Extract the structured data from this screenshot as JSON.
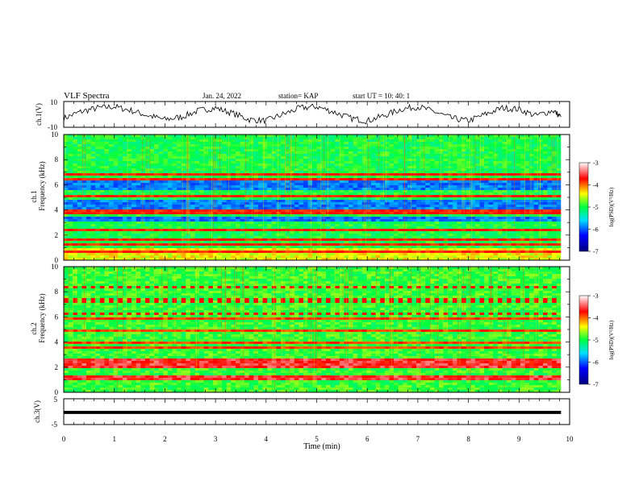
{
  "header": {
    "title": "VLF Spectra",
    "date": "Jan. 24, 2022",
    "station": "station= KAP",
    "start_ut": "start  UT  =   10: 40: 1"
  },
  "colorbar": {
    "ticks": [
      "-3",
      "-4",
      "-5",
      "-6",
      "-7"
    ],
    "label": "log(PSD)(V²/Hz)"
  },
  "chart_data": [
    {
      "id": "ch1-waveform",
      "type": "line",
      "ylabel": "ch.1(V)",
      "ylim": [
        -10,
        10
      ],
      "yticks": [
        "10",
        "-10"
      ],
      "xlim": [
        0,
        10
      ],
      "description_of_signal": "noisy triangular oscillation",
      "x": [
        0.0,
        0.33,
        0.67,
        1.0,
        1.33,
        1.67,
        2.0,
        2.33,
        2.67,
        3.0,
        3.33,
        3.67,
        4.0,
        4.33,
        4.67,
        5.0,
        5.33,
        5.67,
        6.0,
        6.33,
        6.67,
        7.0,
        7.33,
        7.67,
        8.0,
        8.33,
        8.67,
        9.0,
        9.33,
        9.67,
        9.83
      ],
      "y": [
        -3,
        2,
        5,
        6,
        3,
        -1,
        -4,
        -2,
        3,
        5,
        1,
        -4,
        -5,
        0,
        5,
        6,
        2,
        -3,
        -5,
        -1,
        4,
        6,
        2,
        -3,
        -5,
        0,
        5,
        4,
        -1,
        3,
        -2
      ]
    },
    {
      "id": "ch1-spectrogram",
      "type": "heatmap",
      "ylabel": "ch.1\nFrequency (kHz)",
      "ylim": [
        0,
        10
      ],
      "yticks": [
        "0",
        "2",
        "4",
        "6",
        "8",
        "10"
      ],
      "xlim": [
        0,
        9.83
      ],
      "zlim": [
        -7,
        -3
      ],
      "dark_bands_khz": [
        [
          3.1,
          3.5
        ],
        [
          4.1,
          4.9
        ],
        [
          5.6,
          6.3
        ]
      ],
      "red_lines_khz": [
        0.6,
        1.2,
        1.6,
        2.4,
        3.7,
        4.0,
        5.1,
        6.4,
        6.9
      ]
    },
    {
      "id": "ch2-spectrogram",
      "type": "heatmap",
      "ylabel": "ch.2\nFrequency (kHz)",
      "ylim": [
        0,
        10
      ],
      "yticks": [
        "0",
        "2",
        "4",
        "6",
        "8",
        "10"
      ],
      "xlim": [
        0,
        9.83
      ],
      "zlim": [
        -7,
        -3
      ],
      "strong_bands_khz": [
        [
          0.9,
          1.4
        ],
        [
          2.0,
          2.6
        ]
      ],
      "dotted_lines_khz": [
        6.2,
        7.3,
        8.3
      ],
      "red_lines_khz": [
        3.6,
        3.9,
        4.9,
        5.8
      ]
    },
    {
      "id": "ch3-waveform",
      "type": "line",
      "ylabel": "ch.3(V)",
      "ylim": [
        -5,
        5
      ],
      "yticks": [
        "5",
        "-5"
      ],
      "xlim": [
        0,
        10
      ],
      "x": [
        0,
        9.83
      ],
      "y": [
        -0.3,
        -0.3
      ],
      "band_halfwidth": 0.6,
      "xlabel": "Time (min)",
      "xticks": [
        "0",
        "1",
        "2",
        "3",
        "4",
        "5",
        "6",
        "7",
        "8",
        "9",
        "10"
      ]
    }
  ]
}
